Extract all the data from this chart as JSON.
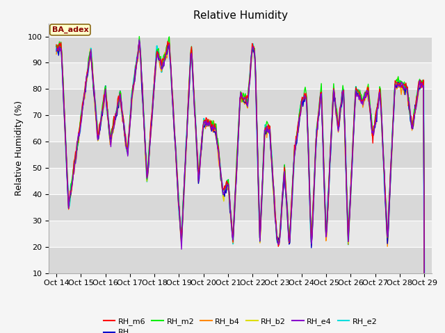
{
  "title": "Relative Humidity",
  "ylabel": "Relative Humidity (%)",
  "ylim": [
    10,
    105
  ],
  "yticks": [
    10,
    20,
    30,
    40,
    50,
    60,
    70,
    80,
    90,
    100
  ],
  "x_labels": [
    "Oct 14",
    "Oct 15",
    "Oct 16",
    "Oct 17",
    "Oct 18",
    "Oct 19",
    "Oct 20",
    "Oct 21",
    "Oct 22",
    "Oct 23",
    "Oct 24",
    "Oct 25",
    "Oct 26",
    "Oct 27",
    "Oct 28",
    "Oct 29"
  ],
  "series_names": [
    "RH_m6",
    "RH",
    "RH_m2",
    "RH_b4",
    "RH_b2",
    "RH_e4",
    "RH_e2"
  ],
  "series_colors": [
    "#ff0000",
    "#0000cc",
    "#00ee00",
    "#ff8800",
    "#dddd00",
    "#8800cc",
    "#00dddd"
  ],
  "series_linewidths": [
    1.0,
    1.0,
    1.0,
    1.0,
    1.0,
    1.0,
    1.5
  ],
  "annotation_text": "BA_adex",
  "title_fontsize": 11,
  "label_fontsize": 9,
  "tick_fontsize": 8,
  "num_points": 480,
  "band_colors": [
    "#e0e0e0",
    "#d0d0d0"
  ],
  "bg_color": "#f5f5f5"
}
